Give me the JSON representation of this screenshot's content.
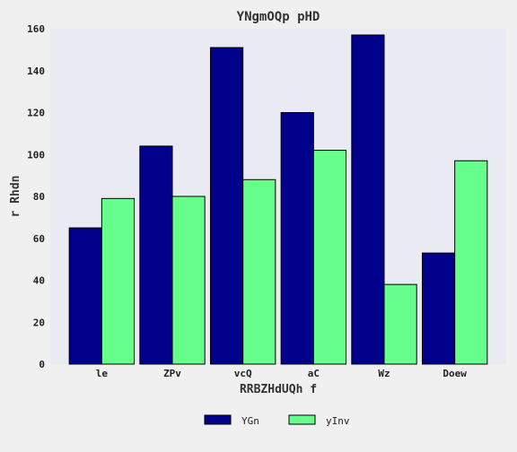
{
  "chart_data": {
    "type": "bar",
    "title": "YNgmOQp pHD",
    "xlabel": "RRBZHdUQh  f",
    "ylabel": "r Rhdn",
    "categories": [
      "le",
      "ZPv",
      "vcQ",
      "aC",
      "Wz",
      "Doew"
    ],
    "ylim": [
      0,
      160
    ],
    "yticks": [
      0,
      20,
      40,
      60,
      80,
      100,
      120,
      140,
      160
    ],
    "series": [
      {
        "name": "YGn",
        "color": "#00008b",
        "values": [
          65,
          104,
          151,
          120,
          157,
          53
        ]
      },
      {
        "name": "yInv",
        "color": "#66ff8c",
        "values": [
          79,
          80,
          88,
          102,
          38,
          97
        ]
      }
    ],
    "legend_position": "bottom-center",
    "grid": false,
    "plot_background": "#eaeaf2"
  }
}
